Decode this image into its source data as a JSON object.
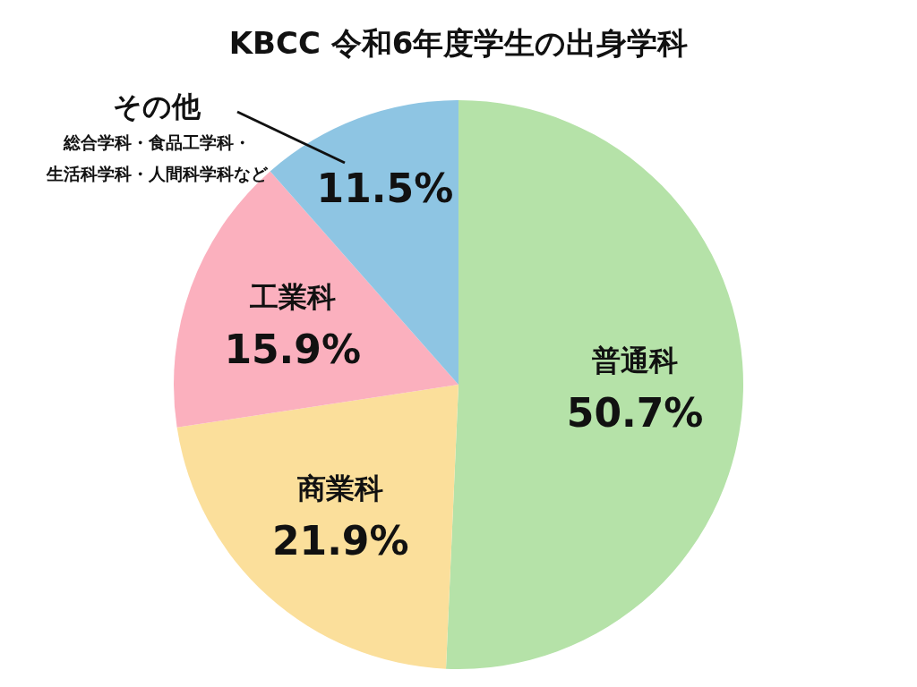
{
  "chart_data": {
    "type": "pie",
    "title": "KBCC 令和6年度学生の出身学科",
    "categories": [
      "普通科",
      "商業科",
      "工業科",
      "その他"
    ],
    "values": [
      50.7,
      21.9,
      15.9,
      11.5
    ],
    "colors": [
      "#b5e2a8",
      "#fbdf9b",
      "#fbb0be",
      "#8ec5e3"
    ],
    "value_labels": [
      "50.7%",
      "21.9%",
      "15.9%",
      "11.5%"
    ],
    "annotations": [
      "総合学科・食品工学科・",
      "生活科学科・人間科学科など"
    ]
  }
}
